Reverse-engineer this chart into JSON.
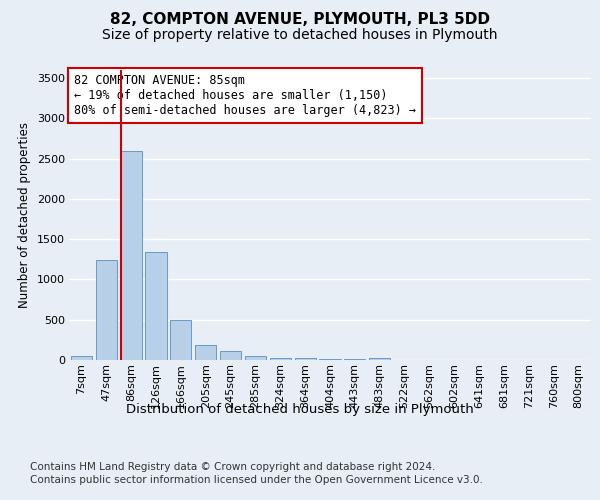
{
  "title1": "82, COMPTON AVENUE, PLYMOUTH, PL3 5DD",
  "title2": "Size of property relative to detached houses in Plymouth",
  "xlabel": "Distribution of detached houses by size in Plymouth",
  "ylabel": "Number of detached properties",
  "categories": [
    "7sqm",
    "47sqm",
    "86sqm",
    "126sqm",
    "166sqm",
    "205sqm",
    "245sqm",
    "285sqm",
    "324sqm",
    "364sqm",
    "404sqm",
    "443sqm",
    "483sqm",
    "522sqm",
    "562sqm",
    "602sqm",
    "641sqm",
    "681sqm",
    "721sqm",
    "760sqm",
    "800sqm"
  ],
  "values": [
    55,
    1240,
    2590,
    1340,
    500,
    190,
    115,
    55,
    30,
    20,
    15,
    10,
    30,
    0,
    0,
    0,
    0,
    0,
    0,
    0,
    0
  ],
  "bar_color": "#b8cfe8",
  "bar_edge_color": "#6699cc",
  "annotation_text": "82 COMPTON AVENUE: 85sqm\n← 19% of detached houses are smaller (1,150)\n80% of semi-detached houses are larger (4,823) →",
  "annotation_box_color": "#ffffff",
  "annotation_box_edge_color": "#cc0000",
  "vline_color": "#cc0000",
  "footer1": "Contains HM Land Registry data © Crown copyright and database right 2024.",
  "footer2": "Contains public sector information licensed under the Open Government Licence v3.0.",
  "ylim": [
    0,
    3600
  ],
  "yticks": [
    0,
    500,
    1000,
    1500,
    2000,
    2500,
    3000,
    3500
  ],
  "background_color": "#e8eef5",
  "plot_bg_color": "#e8eef5",
  "grid_color": "#ffffff",
  "title1_fontsize": 11,
  "title2_fontsize": 10,
  "xlabel_fontsize": 9.5,
  "ylabel_fontsize": 8.5,
  "tick_fontsize": 8,
  "footer_fontsize": 7.5
}
